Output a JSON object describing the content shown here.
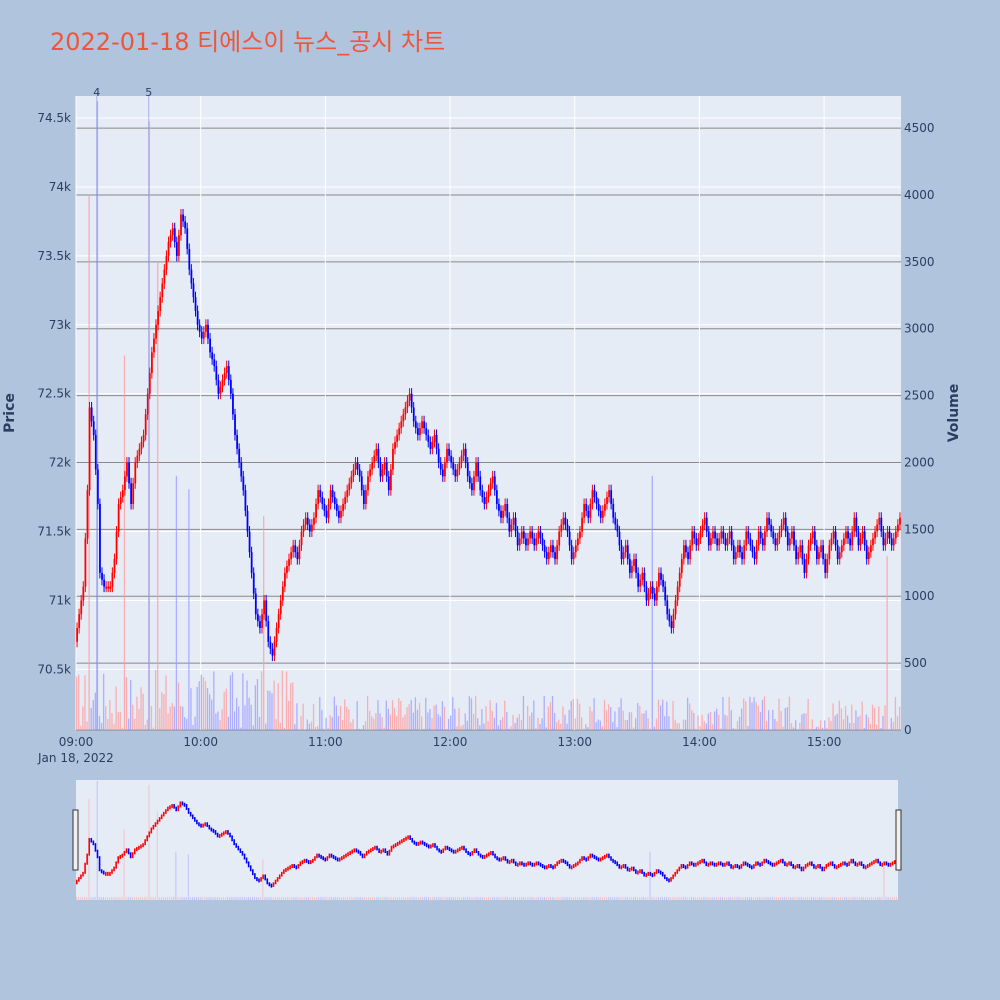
{
  "chart_data": {
    "type": "candlestick",
    "title": "2022-01-18 티에스이 뉴스_공시 차트",
    "ylabel": "Price",
    "y2label": "Volume",
    "date_label": "Jan 18, 2022",
    "price_ylim": [
      70060,
      74660
    ],
    "volume_ylim": [
      0,
      4740
    ],
    "price_ticks": [
      70500,
      71000,
      71500,
      72000,
      72500,
      73000,
      73500,
      74000,
      74500
    ],
    "price_tick_labels": [
      "70.5k",
      "71k",
      "71.5k",
      "72k",
      "72.5k",
      "73k",
      "73.5k",
      "74k",
      "74.5k"
    ],
    "volume_ticks": [
      0,
      500,
      1000,
      1500,
      2000,
      2500,
      3000,
      3500,
      4000,
      4500
    ],
    "volume_tick_labels": [
      "0",
      "500",
      "1000",
      "1500",
      "2000",
      "2500",
      "3000",
      "3500",
      "4000",
      "4500"
    ],
    "x_range_minutes": [
      0,
      397
    ],
    "x_ticks": [
      0,
      60,
      120,
      180,
      240,
      300,
      360
    ],
    "x_tick_labels": [
      "09:00",
      "10:00",
      "11:00",
      "12:00",
      "13:00",
      "14:00",
      "15:00"
    ],
    "up_color": "#ff0000",
    "down_color": "#0000ff",
    "annotations": [
      {
        "label": "4",
        "minute": 10
      },
      {
        "label": "5",
        "minute": 35
      }
    ],
    "price_path": [
      [
        0,
        70700
      ],
      [
        4,
        71100
      ],
      [
        6,
        71800
      ],
      [
        7,
        72400
      ],
      [
        9,
        72200
      ],
      [
        11,
        71700
      ],
      [
        12,
        71200
      ],
      [
        14,
        71100
      ],
      [
        17,
        71100
      ],
      [
        19,
        71300
      ],
      [
        21,
        71700
      ],
      [
        23,
        71800
      ],
      [
        25,
        72000
      ],
      [
        27,
        71700
      ],
      [
        29,
        72000
      ],
      [
        31,
        72100
      ],
      [
        33,
        72200
      ],
      [
        35,
        72500
      ],
      [
        37,
        72800
      ],
      [
        39,
        73000
      ],
      [
        41,
        73200
      ],
      [
        43,
        73400
      ],
      [
        45,
        73600
      ],
      [
        47,
        73700
      ],
      [
        49,
        73500
      ],
      [
        51,
        73800
      ],
      [
        53,
        73700
      ],
      [
        55,
        73400
      ],
      [
        57,
        73200
      ],
      [
        59,
        73000
      ],
      [
        61,
        72900
      ],
      [
        63,
        73000
      ],
      [
        65,
        72800
      ],
      [
        67,
        72700
      ],
      [
        69,
        72500
      ],
      [
        71,
        72600
      ],
      [
        73,
        72700
      ],
      [
        75,
        72500
      ],
      [
        77,
        72200
      ],
      [
        79,
        72000
      ],
      [
        81,
        71800
      ],
      [
        83,
        71500
      ],
      [
        85,
        71200
      ],
      [
        87,
        70900
      ],
      [
        89,
        70800
      ],
      [
        91,
        71000
      ],
      [
        93,
        70700
      ],
      [
        95,
        70600
      ],
      [
        97,
        70800
      ],
      [
        99,
        71000
      ],
      [
        101,
        71200
      ],
      [
        103,
        71300
      ],
      [
        105,
        71400
      ],
      [
        107,
        71300
      ],
      [
        109,
        71500
      ],
      [
        111,
        71600
      ],
      [
        113,
        71500
      ],
      [
        115,
        71600
      ],
      [
        117,
        71800
      ],
      [
        119,
        71700
      ],
      [
        121,
        71600
      ],
      [
        123,
        71800
      ],
      [
        125,
        71700
      ],
      [
        127,
        71600
      ],
      [
        129,
        71700
      ],
      [
        131,
        71800
      ],
      [
        133,
        71900
      ],
      [
        135,
        72000
      ],
      [
        137,
        71900
      ],
      [
        139,
        71700
      ],
      [
        141,
        71900
      ],
      [
        143,
        72000
      ],
      [
        145,
        72100
      ],
      [
        147,
        71900
      ],
      [
        149,
        72000
      ],
      [
        151,
        71800
      ],
      [
        153,
        72100
      ],
      [
        155,
        72200
      ],
      [
        157,
        72300
      ],
      [
        159,
        72400
      ],
      [
        161,
        72500
      ],
      [
        163,
        72300
      ],
      [
        165,
        72200
      ],
      [
        167,
        72300
      ],
      [
        169,
        72200
      ],
      [
        171,
        72100
      ],
      [
        173,
        72200
      ],
      [
        175,
        72000
      ],
      [
        177,
        71900
      ],
      [
        179,
        72100
      ],
      [
        181,
        72000
      ],
      [
        183,
        71900
      ],
      [
        185,
        72000
      ],
      [
        187,
        72100
      ],
      [
        189,
        71900
      ],
      [
        191,
        71800
      ],
      [
        193,
        72000
      ],
      [
        195,
        71800
      ],
      [
        197,
        71700
      ],
      [
        199,
        71800
      ],
      [
        201,
        71900
      ],
      [
        203,
        71700
      ],
      [
        205,
        71600
      ],
      [
        207,
        71700
      ],
      [
        209,
        71500
      ],
      [
        211,
        71600
      ],
      [
        213,
        71400
      ],
      [
        215,
        71500
      ],
      [
        217,
        71400
      ],
      [
        219,
        71500
      ],
      [
        221,
        71400
      ],
      [
        223,
        71500
      ],
      [
        225,
        71400
      ],
      [
        227,
        71300
      ],
      [
        229,
        71400
      ],
      [
        231,
        71300
      ],
      [
        233,
        71500
      ],
      [
        235,
        71600
      ],
      [
        237,
        71500
      ],
      [
        239,
        71300
      ],
      [
        241,
        71400
      ],
      [
        243,
        71500
      ],
      [
        245,
        71700
      ],
      [
        247,
        71600
      ],
      [
        249,
        71800
      ],
      [
        251,
        71700
      ],
      [
        253,
        71600
      ],
      [
        255,
        71700
      ],
      [
        257,
        71800
      ],
      [
        259,
        71600
      ],
      [
        261,
        71500
      ],
      [
        263,
        71300
      ],
      [
        265,
        71400
      ],
      [
        267,
        71200
      ],
      [
        269,
        71300
      ],
      [
        271,
        71100
      ],
      [
        273,
        71200
      ],
      [
        275,
        71000
      ],
      [
        277,
        71100
      ],
      [
        279,
        71000
      ],
      [
        281,
        71200
      ],
      [
        283,
        71100
      ],
      [
        285,
        70900
      ],
      [
        287,
        70800
      ],
      [
        289,
        71000
      ],
      [
        291,
        71200
      ],
      [
        293,
        71400
      ],
      [
        295,
        71300
      ],
      [
        297,
        71500
      ],
      [
        299,
        71400
      ],
      [
        301,
        71500
      ],
      [
        303,
        71600
      ],
      [
        305,
        71400
      ],
      [
        307,
        71500
      ],
      [
        309,
        71400
      ],
      [
        311,
        71500
      ],
      [
        313,
        71400
      ],
      [
        315,
        71500
      ],
      [
        317,
        71300
      ],
      [
        319,
        71400
      ],
      [
        321,
        71300
      ],
      [
        323,
        71500
      ],
      [
        325,
        71400
      ],
      [
        327,
        71300
      ],
      [
        329,
        71500
      ],
      [
        331,
        71400
      ],
      [
        333,
        71600
      ],
      [
        335,
        71500
      ],
      [
        337,
        71400
      ],
      [
        339,
        71500
      ],
      [
        341,
        71600
      ],
      [
        343,
        71400
      ],
      [
        345,
        71500
      ],
      [
        347,
        71300
      ],
      [
        349,
        71400
      ],
      [
        351,
        71200
      ],
      [
        353,
        71400
      ],
      [
        355,
        71500
      ],
      [
        357,
        71300
      ],
      [
        359,
        71400
      ],
      [
        361,
        71200
      ],
      [
        363,
        71400
      ],
      [
        365,
        71500
      ],
      [
        367,
        71300
      ],
      [
        369,
        71400
      ],
      [
        371,
        71500
      ],
      [
        373,
        71400
      ],
      [
        375,
        71600
      ],
      [
        377,
        71400
      ],
      [
        379,
        71500
      ],
      [
        381,
        71300
      ],
      [
        383,
        71400
      ],
      [
        385,
        71500
      ],
      [
        387,
        71600
      ],
      [
        389,
        71400
      ],
      [
        391,
        71500
      ],
      [
        393,
        71400
      ],
      [
        395,
        71500
      ],
      [
        397,
        71600
      ]
    ],
    "volume_spikes": [
      {
        "minute": 6,
        "value": 4000
      },
      {
        "minute": 10,
        "value": 4700
      },
      {
        "minute": 23,
        "value": 2800
      },
      {
        "minute": 35,
        "value": 4550
      },
      {
        "minute": 39,
        "value": 3500
      },
      {
        "minute": 48,
        "value": 1900
      },
      {
        "minute": 54,
        "value": 1800
      },
      {
        "minute": 90,
        "value": 1600
      },
      {
        "minute": 277,
        "value": 1900
      },
      {
        "minute": 390,
        "value": 1300
      }
    ]
  }
}
